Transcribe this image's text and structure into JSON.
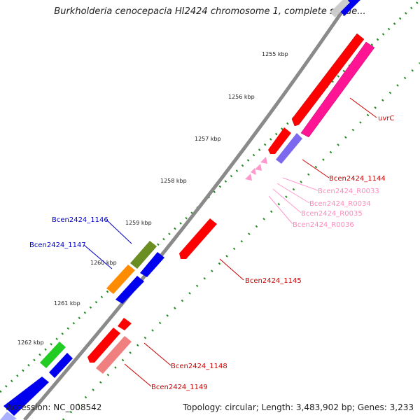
{
  "title": "Burkholderia cenocepacia HI2424 chromosome 1, complete seque...",
  "accession": "Accession: NC_008542",
  "topology": "Topology: circular; Length: 3,483,902 bp; Genes: 3,233",
  "ticks": [
    "1255 kbp",
    "1256 kbp",
    "1257 kbp",
    "1258 kbp",
    "1259 kbp",
    "1260 kbp",
    "1261 kbp",
    "1262 kbp"
  ],
  "genes": {
    "uvrC": "uvrC",
    "b1144": "Bcen2424_1144",
    "r0033": "Bcen2424_R0033",
    "r0034": "Bcen2424_R0034",
    "r0035": "Bcen2424_R0035",
    "r0036": "Bcen2424_R0036",
    "b1145": "Bcen2424_1145",
    "b1146": "Bcen2424_1146",
    "b1147": "Bcen2424_1147",
    "b1148": "Bcen2424_1148",
    "b1149": "Bcen2424_1149"
  },
  "colors": {
    "cds_red": "#ff0000",
    "cds_light_red": "#f08080",
    "pink_magenta": "#ff1493",
    "rna_pink": "#ff99cc",
    "lilac": "#7b68ee",
    "blue": "#0000ee",
    "olive": "#6b8e23",
    "orange": "#ff8c00",
    "green": "#22cc22",
    "backbone": "#808080",
    "gc_dot": "#228b22"
  }
}
